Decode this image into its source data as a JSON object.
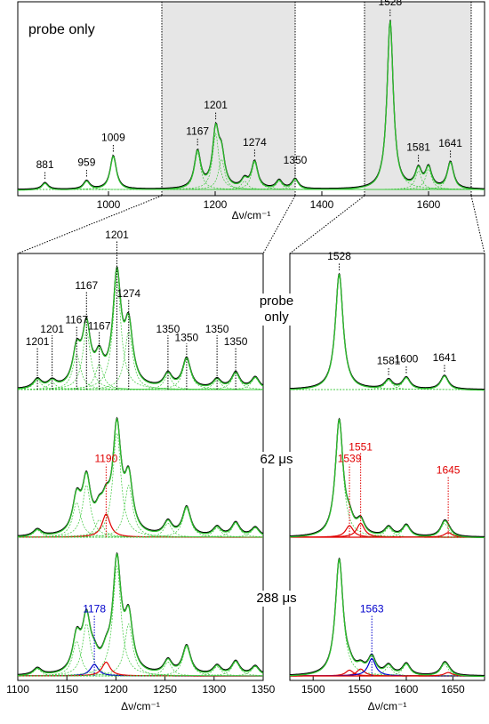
{
  "top": {
    "label": "probe only",
    "xlabel": "Δν/cm⁻¹",
    "xlim": [
      830,
      1705
    ],
    "xticks": [
      1000,
      1200,
      1400,
      1600
    ],
    "shaded": [
      [
        1100,
        1350
      ],
      [
        1480,
        1680
      ]
    ],
    "peaks": [
      {
        "x": 881,
        "height": 0.04,
        "label": "881"
      },
      {
        "x": 959,
        "height": 0.05,
        "label": "959"
      },
      {
        "x": 1009,
        "height": 0.2,
        "label": "1009"
      },
      {
        "x": 1167,
        "height": 0.22,
        "label": "1167"
      },
      {
        "x": 1201,
        "height": 0.33,
        "label": "1201"
      },
      {
        "x": 1212,
        "height": 0.18
      },
      {
        "x": 1255,
        "height": 0.05
      },
      {
        "x": 1274,
        "height": 0.16,
        "label": "1274"
      },
      {
        "x": 1320,
        "height": 0.05
      },
      {
        "x": 1350,
        "height": 0.06,
        "label": "1350"
      },
      {
        "x": 1528,
        "height": 1.0,
        "label": "1528"
      },
      {
        "x": 1581,
        "height": 0.11,
        "label": "1581"
      },
      {
        "x": 1600,
        "height": 0.12
      },
      {
        "x": 1641,
        "height": 0.16,
        "label": "1641"
      }
    ]
  },
  "left": {
    "xlabel": "Δν/cm⁻¹",
    "xlim": [
      1100,
      1350
    ],
    "xticks": [
      1100,
      1150,
      1200,
      1250,
      1300,
      1350
    ]
  },
  "right": {
    "xlabel": "Δν/cm⁻¹",
    "xlim": [
      1475,
      1684
    ],
    "xticks": [
      1500,
      1550,
      1600,
      1650
    ]
  },
  "rows": [
    {
      "label": "probe only",
      "left": {
        "peaks": [
          {
            "x": 1120,
            "height": 0.08
          },
          {
            "x": 1135,
            "height": 0.06
          },
          {
            "x": 1160,
            "height": 0.3
          },
          {
            "x": 1170,
            "height": 0.5
          },
          {
            "x": 1183,
            "height": 0.22
          },
          {
            "x": 1201,
            "height": 0.95
          },
          {
            "x": 1213,
            "height": 0.5
          },
          {
            "x": 1253,
            "height": 0.12
          },
          {
            "x": 1272,
            "height": 0.26
          },
          {
            "x": 1303,
            "height": 0.08
          },
          {
            "x": 1322,
            "height": 0.14
          },
          {
            "x": 1342,
            "height": 0.1
          }
        ],
        "annotations": [
          {
            "x": 1120,
            "label": "1201"
          },
          {
            "x": 1135,
            "label": "1201"
          },
          {
            "x": 1160,
            "label": "1167"
          },
          {
            "x": 1170,
            "label": "1167"
          },
          {
            "x": 1183,
            "label": "1167"
          },
          {
            "x": 1201,
            "label": "1201"
          },
          {
            "x": 1213,
            "label": "1274"
          },
          {
            "x": 1253,
            "label": "1350"
          },
          {
            "x": 1272,
            "label": "1350"
          },
          {
            "x": 1303,
            "label": "1350"
          },
          {
            "x": 1322,
            "label": "1350"
          }
        ]
      },
      "right": {
        "peaks": [
          {
            "x": 1528,
            "height": 1.0,
            "label": "1528"
          },
          {
            "x": 1581,
            "height": 0.08,
            "label": "1581"
          },
          {
            "x": 1600,
            "height": 0.1,
            "label": "1600"
          },
          {
            "x": 1641,
            "height": 0.12,
            "label": "1641"
          }
        ]
      }
    },
    {
      "label": "62 μs",
      "left": {
        "peaks": [
          {
            "x": 1120,
            "height": 0.06
          },
          {
            "x": 1160,
            "height": 0.3
          },
          {
            "x": 1170,
            "height": 0.45
          },
          {
            "x": 1183,
            "height": 0.15
          },
          {
            "x": 1190,
            "height": 0.2,
            "color": "#e00000",
            "label": "1190"
          },
          {
            "x": 1201,
            "height": 0.9
          },
          {
            "x": 1213,
            "height": 0.45
          },
          {
            "x": 1253,
            "height": 0.12
          },
          {
            "x": 1272,
            "height": 0.25
          },
          {
            "x": 1303,
            "height": 0.08
          },
          {
            "x": 1322,
            "height": 0.12
          },
          {
            "x": 1342,
            "height": 0.08
          }
        ]
      },
      "right": {
        "peaks": [
          {
            "x": 1528,
            "height": 1.0
          },
          {
            "x": 1539,
            "height": 0.1,
            "color": "#e00000",
            "label": "1539"
          },
          {
            "x": 1551,
            "height": 0.12,
            "color": "#e00000",
            "label": "1551"
          },
          {
            "x": 1581,
            "height": 0.08
          },
          {
            "x": 1600,
            "height": 0.1
          },
          {
            "x": 1641,
            "height": 0.12
          },
          {
            "x": 1645,
            "height": 0.04,
            "color": "#e00000",
            "label": "1645"
          }
        ]
      }
    },
    {
      "label": "288 μs",
      "left": {
        "peaks": [
          {
            "x": 1120,
            "height": 0.06
          },
          {
            "x": 1160,
            "height": 0.3
          },
          {
            "x": 1170,
            "height": 0.45
          },
          {
            "x": 1178,
            "height": 0.1,
            "color": "#0000cc",
            "label": "1178"
          },
          {
            "x": 1190,
            "height": 0.12,
            "color": "#e00000"
          },
          {
            "x": 1201,
            "height": 0.95
          },
          {
            "x": 1213,
            "height": 0.45
          },
          {
            "x": 1253,
            "height": 0.12
          },
          {
            "x": 1272,
            "height": 0.25
          },
          {
            "x": 1303,
            "height": 0.08
          },
          {
            "x": 1322,
            "height": 0.12
          },
          {
            "x": 1342,
            "height": 0.08
          }
        ]
      },
      "right": {
        "peaks": [
          {
            "x": 1528,
            "height": 1.0
          },
          {
            "x": 1539,
            "height": 0.05,
            "color": "#e00000"
          },
          {
            "x": 1551,
            "height": 0.06,
            "color": "#e00000"
          },
          {
            "x": 1563,
            "height": 0.15,
            "color": "#0000cc",
            "label": "1563"
          },
          {
            "x": 1581,
            "height": 0.08
          },
          {
            "x": 1600,
            "height": 0.1
          },
          {
            "x": 1641,
            "height": 0.1
          },
          {
            "x": 1645,
            "height": 0.03,
            "color": "#e00000"
          }
        ]
      }
    }
  ]
}
